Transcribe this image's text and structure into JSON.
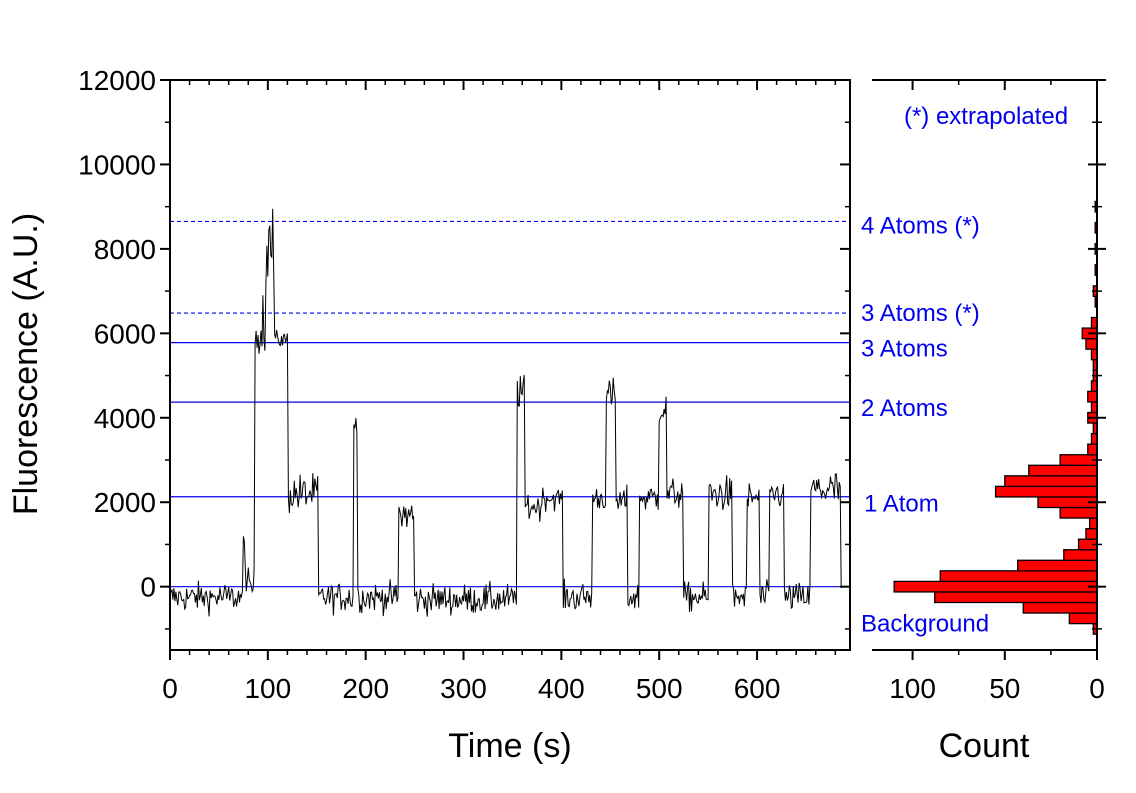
{
  "chart_data": [
    {
      "type": "line",
      "xlabel": "Time (s)",
      "ylabel": "Fluorescence (A.U.)",
      "xlim": [
        0,
        695
      ],
      "ylim": [
        -1500,
        12000
      ],
      "xticks": [
        0,
        100,
        200,
        300,
        400,
        500,
        600
      ],
      "yticks": [
        0,
        2000,
        4000,
        6000,
        8000,
        10000,
        12000
      ],
      "series": [
        {
          "color": "#000000",
          "segments": [
            {
              "t0": 0,
              "t1": 75,
              "level": -250,
              "noise": 330
            },
            {
              "t0": 75,
              "t1": 78,
              "level": 900,
              "noise": 400
            },
            {
              "t0": 78,
              "t1": 87,
              "level": 0,
              "noise": 380
            },
            {
              "t0": 87,
              "t1": 98,
              "level": 6000,
              "noise": 450
            },
            {
              "t0": 98,
              "t1": 107,
              "level": 7800,
              "noise": 700
            },
            {
              "t0": 107,
              "t1": 121,
              "level": 5850,
              "noise": 200
            },
            {
              "t0": 121,
              "t1": 152,
              "level": 2200,
              "noise": 450
            },
            {
              "t0": 152,
              "t1": 188,
              "level": -250,
              "noise": 330
            },
            {
              "t0": 188,
              "t1": 192,
              "level": 3900,
              "noise": 500
            },
            {
              "t0": 192,
              "t1": 234,
              "level": -250,
              "noise": 330
            },
            {
              "t0": 234,
              "t1": 250,
              "level": 1700,
              "noise": 450
            },
            {
              "t0": 250,
              "t1": 355,
              "level": -300,
              "noise": 340
            },
            {
              "t0": 355,
              "t1": 363,
              "level": 4600,
              "noise": 380
            },
            {
              "t0": 363,
              "t1": 380,
              "level": 1900,
              "noise": 350
            },
            {
              "t0": 380,
              "t1": 402,
              "level": 2100,
              "noise": 250
            },
            {
              "t0": 402,
              "t1": 432,
              "level": -250,
              "noise": 330
            },
            {
              "t0": 432,
              "t1": 446,
              "level": 2100,
              "noise": 300
            },
            {
              "t0": 446,
              "t1": 456,
              "level": 4500,
              "noise": 400
            },
            {
              "t0": 456,
              "t1": 468,
              "level": 2000,
              "noise": 350
            },
            {
              "t0": 468,
              "t1": 480,
              "level": -250,
              "noise": 330
            },
            {
              "t0": 480,
              "t1": 500,
              "level": 2100,
              "noise": 350
            },
            {
              "t0": 500,
              "t1": 508,
              "level": 4200,
              "noise": 350
            },
            {
              "t0": 508,
              "t1": 525,
              "level": 2200,
              "noise": 350
            },
            {
              "t0": 525,
              "t1": 551,
              "level": -250,
              "noise": 330
            },
            {
              "t0": 551,
              "t1": 575,
              "level": 2200,
              "noise": 400
            },
            {
              "t0": 575,
              "t1": 590,
              "level": -250,
              "noise": 330
            },
            {
              "t0": 590,
              "t1": 603,
              "level": 2100,
              "noise": 350
            },
            {
              "t0": 603,
              "t1": 613,
              "level": -250,
              "noise": 330
            },
            {
              "t0": 613,
              "t1": 628,
              "level": 2200,
              "noise": 350
            },
            {
              "t0": 628,
              "t1": 655,
              "level": -250,
              "noise": 330
            },
            {
              "t0": 655,
              "t1": 686,
              "level": 2300,
              "noise": 450
            },
            {
              "t0": 686,
              "t1": 688,
              "level": 0,
              "noise": 200
            }
          ]
        }
      ],
      "levels": [
        {
          "label": "4 Atoms (*)",
          "value": 8650,
          "style": "dashed",
          "color": "#0000ee"
        },
        {
          "label": "3 Atoms (*)",
          "value": 6480,
          "style": "dashed",
          "color": "#0000ee"
        },
        {
          "label": "3 Atoms",
          "value": 5780,
          "style": "solid",
          "color": "#0000ee"
        },
        {
          "label": "2 Atoms",
          "value": 4370,
          "style": "solid",
          "color": "#0000ee"
        },
        {
          "label": "1 Atom",
          "value": 2130,
          "style": "solid",
          "color": "#0000ee"
        },
        {
          "label": "Background",
          "value": 0,
          "style": "solid",
          "color": "#0000ee"
        }
      ],
      "grid": false
    },
    {
      "type": "bar",
      "orientation": "horizontal",
      "xlabel": "Count",
      "ylabel": "",
      "xlim": [
        122,
        0
      ],
      "ylim": [
        -1500,
        12000
      ],
      "xticks": [
        100,
        50,
        0
      ],
      "bin_width": 250,
      "color": "#ff0000",
      "bins": [
        {
          "y": -1000,
          "count": 2
        },
        {
          "y": -750,
          "count": 15
        },
        {
          "y": -500,
          "count": 40
        },
        {
          "y": -250,
          "count": 88
        },
        {
          "y": 0,
          "count": 110
        },
        {
          "y": 250,
          "count": 85
        },
        {
          "y": 500,
          "count": 43
        },
        {
          "y": 750,
          "count": 18
        },
        {
          "y": 1000,
          "count": 10
        },
        {
          "y": 1250,
          "count": 6
        },
        {
          "y": 1500,
          "count": 4
        },
        {
          "y": 1750,
          "count": 20
        },
        {
          "y": 2000,
          "count": 32
        },
        {
          "y": 2250,
          "count": 55
        },
        {
          "y": 2500,
          "count": 50
        },
        {
          "y": 2750,
          "count": 37
        },
        {
          "y": 3000,
          "count": 20
        },
        {
          "y": 3250,
          "count": 5
        },
        {
          "y": 3500,
          "count": 3
        },
        {
          "y": 3750,
          "count": 2
        },
        {
          "y": 4000,
          "count": 5
        },
        {
          "y": 4250,
          "count": 3
        },
        {
          "y": 4500,
          "count": 5
        },
        {
          "y": 4750,
          "count": 3
        },
        {
          "y": 5000,
          "count": 2
        },
        {
          "y": 5250,
          "count": 2
        },
        {
          "y": 5500,
          "count": 3
        },
        {
          "y": 5750,
          "count": 6
        },
        {
          "y": 6000,
          "count": 8
        },
        {
          "y": 6250,
          "count": 3
        },
        {
          "y": 6750,
          "count": 1
        },
        {
          "y": 7000,
          "count": 2
        },
        {
          "y": 7500,
          "count": 1
        },
        {
          "y": 8000,
          "count": 1
        },
        {
          "y": 8500,
          "count": 1
        },
        {
          "y": 9000,
          "count": 1
        }
      ]
    }
  ],
  "annotation": {
    "text": "(*) extrapolated",
    "color": "#0000ee"
  }
}
